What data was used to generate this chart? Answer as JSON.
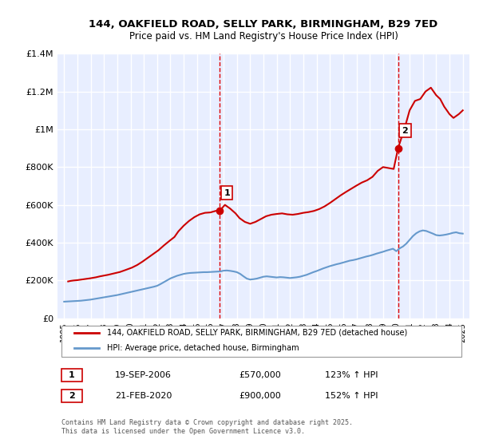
{
  "title": "144, OAKFIELD ROAD, SELLY PARK, BIRMINGHAM, B29 7ED",
  "subtitle": "Price paid vs. HM Land Registry's House Price Index (HPI)",
  "background_color": "#f0f4ff",
  "plot_bg_color": "#e8eeff",
  "grid_color": "#ffffff",
  "ylim": [
    0,
    1400000
  ],
  "yticks": [
    0,
    200000,
    400000,
    600000,
    800000,
    1000000,
    1200000,
    1400000
  ],
  "ytick_labels": [
    "£0",
    "£200K",
    "£400K",
    "£600K",
    "£800K",
    "£1M",
    "£1.2M",
    "£1.4M"
  ],
  "xlim_start": 1995,
  "xlim_end": 2025.5,
  "xticks": [
    1995,
    1996,
    1997,
    1998,
    1999,
    2000,
    2001,
    2002,
    2003,
    2004,
    2005,
    2006,
    2007,
    2008,
    2009,
    2010,
    2011,
    2012,
    2013,
    2014,
    2015,
    2016,
    2017,
    2018,
    2019,
    2020,
    2021,
    2022,
    2023,
    2024,
    2025
  ],
  "property_color": "#cc0000",
  "hpi_color": "#6699cc",
  "marker1_x": 2006.72,
  "marker1_y": 570000,
  "marker2_x": 2020.13,
  "marker2_y": 900000,
  "vline_color": "#dd0000",
  "legend_label_property": "144, OAKFIELD ROAD, SELLY PARK, BIRMINGHAM, B29 7ED (detached house)",
  "legend_label_hpi": "HPI: Average price, detached house, Birmingham",
  "annotation1_label": "1",
  "annotation2_label": "2",
  "table_row1": [
    "1",
    "19-SEP-2006",
    "£570,000",
    "123% ↑ HPI"
  ],
  "table_row2": [
    "2",
    "21-FEB-2020",
    "£900,000",
    "152% ↑ HPI"
  ],
  "footnote": "Contains HM Land Registry data © Crown copyright and database right 2025.\nThis data is licensed under the Open Government Licence v3.0.",
  "hpi_data_x": [
    1995.0,
    1995.25,
    1995.5,
    1995.75,
    1996.0,
    1996.25,
    1996.5,
    1996.75,
    1997.0,
    1997.25,
    1997.5,
    1997.75,
    1998.0,
    1998.25,
    1998.5,
    1998.75,
    1999.0,
    1999.25,
    1999.5,
    1999.75,
    2000.0,
    2000.25,
    2000.5,
    2000.75,
    2001.0,
    2001.25,
    2001.5,
    2001.75,
    2002.0,
    2002.25,
    2002.5,
    2002.75,
    2003.0,
    2003.25,
    2003.5,
    2003.75,
    2004.0,
    2004.25,
    2004.5,
    2004.75,
    2005.0,
    2005.25,
    2005.5,
    2005.75,
    2006.0,
    2006.25,
    2006.5,
    2006.75,
    2007.0,
    2007.25,
    2007.5,
    2007.75,
    2008.0,
    2008.25,
    2008.5,
    2008.75,
    2009.0,
    2009.25,
    2009.5,
    2009.75,
    2010.0,
    2010.25,
    2010.5,
    2010.75,
    2011.0,
    2011.25,
    2011.5,
    2011.75,
    2012.0,
    2012.25,
    2012.5,
    2012.75,
    2013.0,
    2013.25,
    2013.5,
    2013.75,
    2014.0,
    2014.25,
    2014.5,
    2014.75,
    2015.0,
    2015.25,
    2015.5,
    2015.75,
    2016.0,
    2016.25,
    2016.5,
    2016.75,
    2017.0,
    2017.25,
    2017.5,
    2017.75,
    2018.0,
    2018.25,
    2018.5,
    2018.75,
    2019.0,
    2019.25,
    2019.5,
    2019.75,
    2020.0,
    2020.25,
    2020.5,
    2020.75,
    2021.0,
    2021.25,
    2021.5,
    2021.75,
    2022.0,
    2022.25,
    2022.5,
    2022.75,
    2023.0,
    2023.25,
    2023.5,
    2023.75,
    2024.0,
    2024.25,
    2024.5,
    2024.75,
    2025.0
  ],
  "hpi_data_y": [
    88000,
    89000,
    90000,
    91000,
    92000,
    93000,
    95000,
    97000,
    99000,
    102000,
    105000,
    108000,
    111000,
    114000,
    117000,
    120000,
    123000,
    127000,
    131000,
    135000,
    139000,
    143000,
    147000,
    151000,
    155000,
    159000,
    163000,
    167000,
    172000,
    181000,
    191000,
    201000,
    211000,
    218000,
    225000,
    230000,
    235000,
    238000,
    240000,
    241000,
    242000,
    243000,
    244000,
    244000,
    245000,
    246000,
    247000,
    248000,
    252000,
    253000,
    251000,
    248000,
    244000,
    235000,
    222000,
    210000,
    205000,
    207000,
    210000,
    215000,
    220000,
    222000,
    220000,
    218000,
    216000,
    218000,
    217000,
    215000,
    213000,
    215000,
    217000,
    220000,
    225000,
    230000,
    237000,
    244000,
    250000,
    257000,
    264000,
    270000,
    276000,
    281000,
    286000,
    290000,
    295000,
    300000,
    305000,
    308000,
    312000,
    317000,
    322000,
    327000,
    331000,
    336000,
    342000,
    347000,
    352000,
    358000,
    363000,
    368000,
    355000,
    370000,
    380000,
    395000,
    415000,
    435000,
    450000,
    460000,
    465000,
    462000,
    455000,
    448000,
    440000,
    438000,
    440000,
    443000,
    447000,
    452000,
    455000,
    450000,
    448000
  ],
  "property_data_x": [
    1995.3,
    1995.5,
    1995.7,
    1996.0,
    1996.3,
    1996.6,
    1997.0,
    1997.4,
    1997.7,
    1998.0,
    1998.3,
    1998.6,
    1998.9,
    1999.2,
    1999.6,
    2000.1,
    2000.5,
    2000.9,
    2001.3,
    2001.7,
    2002.1,
    2002.5,
    2002.9,
    2003.3,
    2003.6,
    2004.0,
    2004.4,
    2004.8,
    2005.2,
    2005.6,
    2006.0,
    2006.4,
    2006.72,
    2007.1,
    2007.5,
    2007.9,
    2008.2,
    2008.6,
    2009.0,
    2009.4,
    2009.8,
    2010.2,
    2010.6,
    2011.0,
    2011.4,
    2011.8,
    2012.2,
    2012.6,
    2013.0,
    2013.4,
    2013.8,
    2014.2,
    2014.6,
    2015.0,
    2015.4,
    2015.8,
    2016.2,
    2016.6,
    2017.0,
    2017.4,
    2017.8,
    2018.2,
    2018.6,
    2019.0,
    2019.4,
    2019.8,
    2020.13,
    2020.6,
    2021.0,
    2021.4,
    2021.8,
    2022.2,
    2022.6,
    2023.0,
    2023.3,
    2023.6,
    2024.0,
    2024.3,
    2024.7,
    2025.0
  ],
  "property_data_y": [
    195000,
    198000,
    200000,
    202000,
    205000,
    208000,
    212000,
    217000,
    222000,
    226000,
    230000,
    235000,
    240000,
    245000,
    255000,
    268000,
    282000,
    300000,
    320000,
    340000,
    360000,
    385000,
    408000,
    430000,
    460000,
    490000,
    515000,
    535000,
    550000,
    558000,
    560000,
    568000,
    570000,
    600000,
    580000,
    555000,
    530000,
    510000,
    500000,
    510000,
    525000,
    540000,
    548000,
    552000,
    555000,
    550000,
    548000,
    552000,
    558000,
    562000,
    568000,
    578000,
    592000,
    610000,
    630000,
    650000,
    668000,
    685000,
    702000,
    718000,
    730000,
    748000,
    780000,
    800000,
    795000,
    790000,
    900000,
    1000000,
    1100000,
    1150000,
    1160000,
    1200000,
    1220000,
    1180000,
    1160000,
    1120000,
    1080000,
    1060000,
    1080000,
    1100000
  ]
}
